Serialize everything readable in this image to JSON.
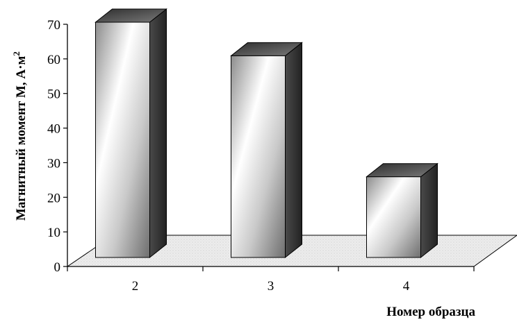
{
  "chart_data": {
    "type": "bar",
    "style": "3d-cylinder-like boxes with gradient shading",
    "categories": [
      "2",
      "3",
      "4"
    ],
    "values": [
      70,
      60,
      24
    ],
    "xlabel": "Номер образца",
    "ylabel": "Магнитный момент М, А·м",
    "ylabel_superscript": "2",
    "ylim": [
      0,
      70
    ],
    "yticks": [
      0,
      10,
      20,
      30,
      40,
      50,
      60,
      70
    ],
    "grid": false,
    "floor": "textured light-gray 3D floor",
    "colors": {
      "bar_front_light": "#ffffff",
      "bar_front_dark": "#7a7a7a",
      "bar_side": "#3a3a3a",
      "bar_top": "#5a5a5a",
      "floor": "#e8e8e8",
      "axis": "#000000"
    }
  }
}
